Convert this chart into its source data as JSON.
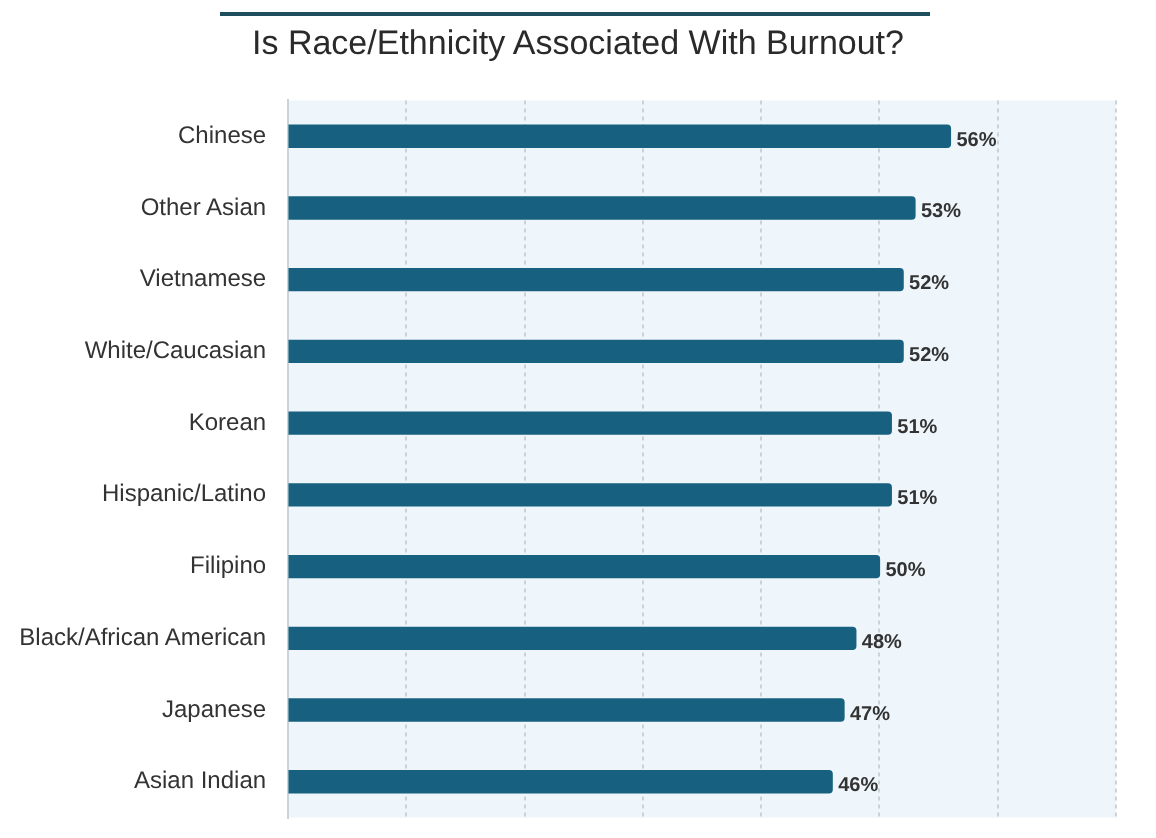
{
  "chart_data": {
    "type": "bar",
    "orientation": "horizontal",
    "title": "Is Race/Ethnicity Associated With Burnout?",
    "categories": [
      "Chinese",
      "Other Asian",
      "Vietnamese",
      "White/Caucasian",
      "Korean",
      "Hispanic/Latino",
      "Filipino",
      "Black/African American",
      "Japanese",
      "Asian Indian"
    ],
    "values": [
      56,
      53,
      52,
      52,
      51,
      51,
      50,
      48,
      47,
      46
    ],
    "value_labels": [
      "56%",
      "53%",
      "52%",
      "52%",
      "51%",
      "51%",
      "50%",
      "48%",
      "47%",
      "46%"
    ],
    "color": "#17607f",
    "xlim": [
      0,
      70
    ],
    "xticks": [
      {
        "value": 0,
        "label": null
      },
      {
        "value": 10,
        "label": null
      },
      {
        "value": 20,
        "label": null
      },
      {
        "value": 30,
        "label": null
      },
      {
        "value": 40,
        "label": null
      },
      {
        "value": 50,
        "label": null
      },
      {
        "value": 60,
        "label": null
      },
      {
        "value": 70,
        "label": null
      }
    ],
    "tick_labels": "y",
    "grid": "x",
    "legend": false
  }
}
